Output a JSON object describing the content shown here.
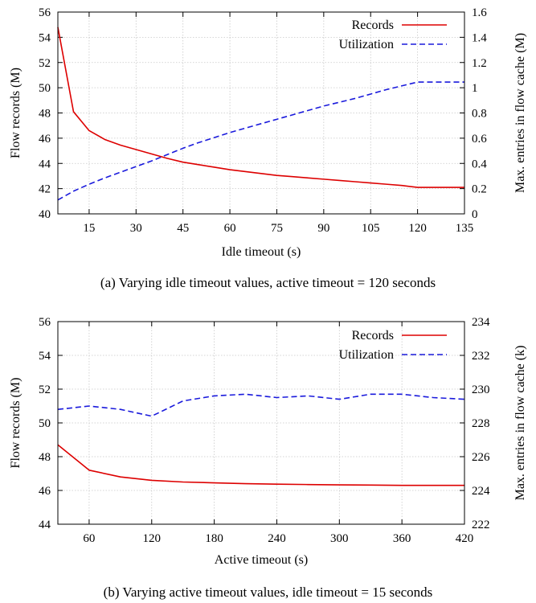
{
  "figure": {
    "caption_a": "(a)  Varying idle timeout values, active timeout = 120 seconds",
    "caption_b": "(b)  Varying active timeout values, idle timeout = 15 seconds"
  },
  "chart_data": [
    {
      "type": "line",
      "xlabel": "Idle timeout (s)",
      "ylabel": "Flow records (M)",
      "y2label": "Max. entries in flow cache (M)",
      "xlim": [
        5,
        135
      ],
      "ylim": [
        40,
        56
      ],
      "y2lim": [
        0,
        1.6
      ],
      "xticks": [
        15,
        30,
        45,
        60,
        75,
        90,
        105,
        120,
        135
      ],
      "yticks": [
        40,
        42,
        44,
        46,
        48,
        50,
        52,
        54,
        56
      ],
      "y2ticks": [
        0,
        0.2,
        0.4,
        0.6,
        0.8,
        1,
        1.2,
        1.4,
        1.6
      ],
      "grid": true,
      "legend": "top-right",
      "series": [
        {
          "name": "Records",
          "axis": "left",
          "color": "#dd0000",
          "dash": "solid",
          "x": [
            5,
            10,
            15,
            20,
            25,
            30,
            35,
            40,
            45,
            50,
            55,
            60,
            65,
            70,
            75,
            80,
            85,
            90,
            95,
            100,
            105,
            110,
            115,
            120,
            125,
            130,
            135
          ],
          "y": [
            54.8,
            48.1,
            46.6,
            45.9,
            45.45,
            45.1,
            44.75,
            44.4,
            44.1,
            43.9,
            43.7,
            43.5,
            43.35,
            43.2,
            43.05,
            42.95,
            42.85,
            42.75,
            42.65,
            42.55,
            42.45,
            42.35,
            42.25,
            42.1,
            42.1,
            42.1,
            42.1
          ]
        },
        {
          "name": "Utilization",
          "axis": "right",
          "color": "#1a1adc",
          "dash": "dashed",
          "x": [
            5,
            10,
            15,
            20,
            25,
            30,
            35,
            40,
            45,
            50,
            55,
            60,
            65,
            70,
            75,
            80,
            85,
            90,
            95,
            100,
            105,
            110,
            115,
            120,
            125,
            130,
            135
          ],
          "y": [
            0.11,
            0.18,
            0.235,
            0.285,
            0.33,
            0.375,
            0.42,
            0.47,
            0.52,
            0.565,
            0.605,
            0.645,
            0.68,
            0.715,
            0.75,
            0.785,
            0.82,
            0.855,
            0.885,
            0.915,
            0.95,
            0.985,
            1.015,
            1.045,
            1.045,
            1.045,
            1.045
          ]
        }
      ]
    },
    {
      "type": "line",
      "xlabel": "Active timeout (s)",
      "ylabel": "Flow records (M)",
      "y2label": "Max. entries in flow cache (k)",
      "xlim": [
        30,
        420
      ],
      "ylim": [
        44,
        56
      ],
      "y2lim": [
        222,
        234
      ],
      "xticks": [
        60,
        120,
        180,
        240,
        300,
        360,
        420
      ],
      "yticks": [
        44,
        46,
        48,
        50,
        52,
        54,
        56
      ],
      "y2ticks": [
        222,
        224,
        226,
        228,
        230,
        232,
        234
      ],
      "grid": true,
      "legend": "top-right",
      "series": [
        {
          "name": "Records",
          "axis": "left",
          "color": "#dd0000",
          "dash": "solid",
          "x": [
            30,
            60,
            90,
            120,
            150,
            180,
            210,
            240,
            270,
            300,
            330,
            360,
            390,
            420
          ],
          "y": [
            48.7,
            47.2,
            46.8,
            46.6,
            46.5,
            46.45,
            46.4,
            46.37,
            46.35,
            46.33,
            46.32,
            46.3,
            46.3,
            46.3
          ]
        },
        {
          "name": "Utilization",
          "axis": "right",
          "color": "#1a1adc",
          "dash": "dashed",
          "x": [
            30,
            60,
            90,
            120,
            150,
            180,
            210,
            240,
            270,
            300,
            330,
            360,
            390,
            420
          ],
          "y": [
            228.8,
            229.0,
            228.8,
            228.4,
            229.3,
            229.6,
            229.7,
            229.5,
            229.6,
            229.4,
            229.7,
            229.7,
            229.5,
            229.4
          ]
        }
      ]
    }
  ]
}
